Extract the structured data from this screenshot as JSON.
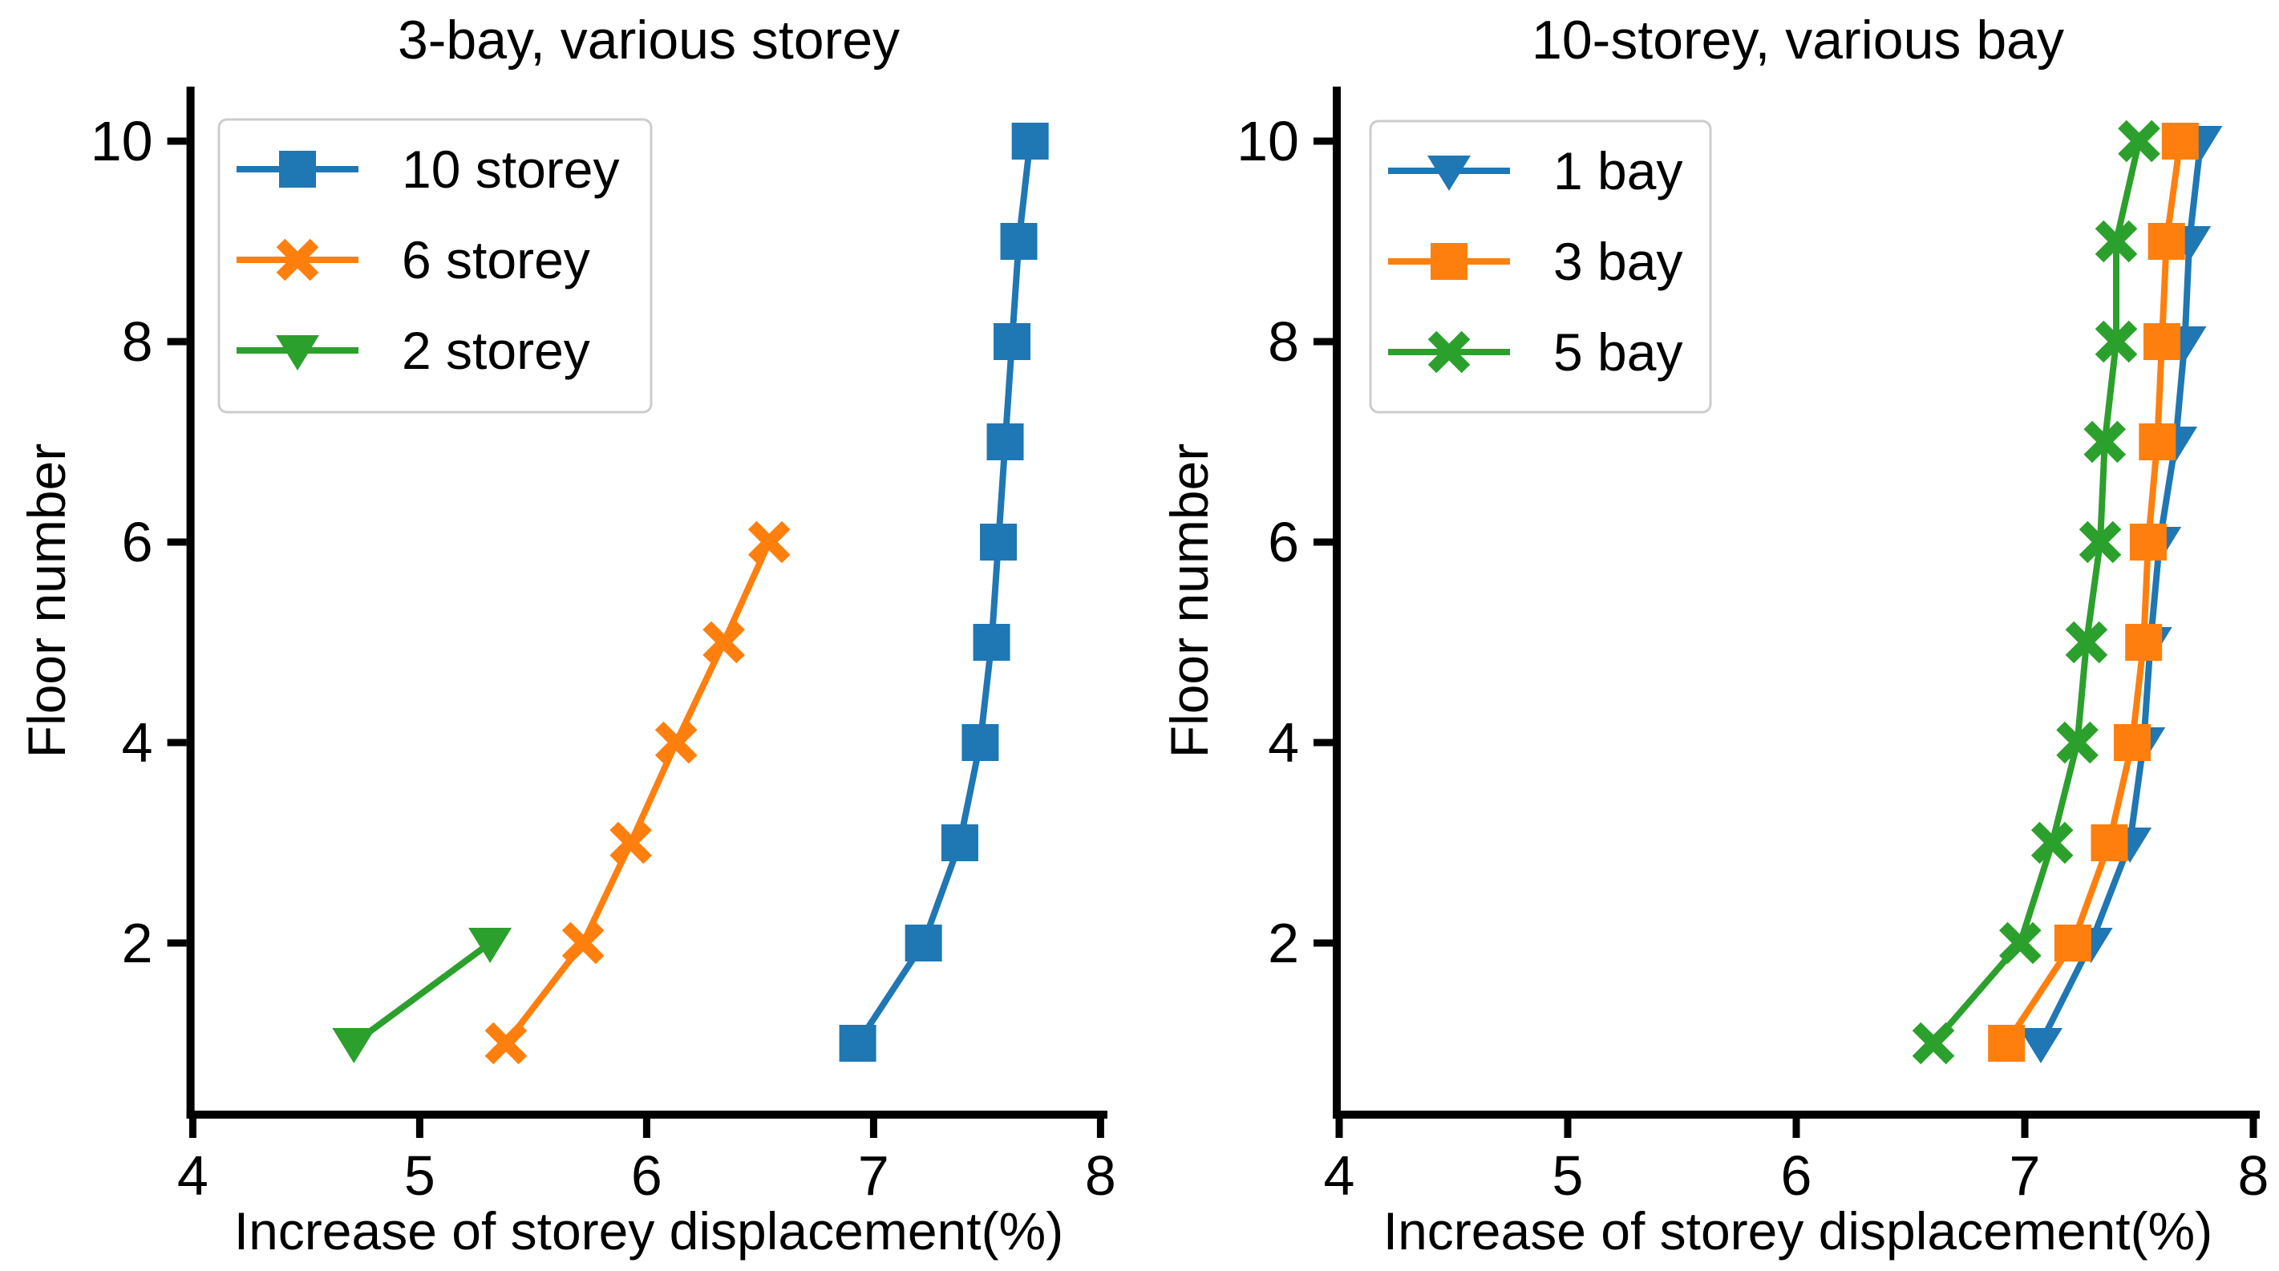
{
  "figure": {
    "background": "#ffffff",
    "axis_color": "#000000",
    "legend_border_color": "#cccccc"
  },
  "chart_data": [
    {
      "type": "line",
      "title": "3-bay, various storey",
      "xlabel": "Increase of storey displacement(%)",
      "ylabel": "Floor number",
      "xticks": [
        4,
        5,
        6,
        7,
        8
      ],
      "yticks": [
        2,
        4,
        6,
        8,
        10
      ],
      "xlim": [
        4,
        8.03
      ],
      "ylim": [
        0.29,
        10.54
      ],
      "grid": false,
      "legend_position": "upper left",
      "series": [
        {
          "name": "10 storey",
          "color": "#1f77b4",
          "marker": "square",
          "floors": [
            1,
            2,
            3,
            4,
            5,
            6,
            7,
            8,
            9,
            10
          ],
          "values": [
            6.93,
            7.22,
            7.38,
            7.47,
            7.52,
            7.55,
            7.58,
            7.61,
            7.64,
            7.69
          ]
        },
        {
          "name": "6 storey",
          "color": "#ff7f0e",
          "marker": "x",
          "floors": [
            1,
            2,
            3,
            4,
            5,
            6
          ],
          "values": [
            5.38,
            5.72,
            5.93,
            6.13,
            6.34,
            6.54
          ]
        },
        {
          "name": "2 storey",
          "color": "#2ca02c",
          "marker": "triangle-down",
          "floors": [
            1,
            2
          ],
          "values": [
            4.71,
            5.31
          ]
        }
      ]
    },
    {
      "type": "line",
      "title": "10-storey, various bay",
      "xlabel": "Increase of storey displacement(%)",
      "ylabel": "Floor number",
      "xticks": [
        4,
        5,
        6,
        7,
        8
      ],
      "yticks": [
        2,
        4,
        6,
        8,
        10
      ],
      "xlim": [
        4,
        8.03
      ],
      "ylim": [
        0.29,
        10.54
      ],
      "grid": false,
      "legend_position": "upper left",
      "series": [
        {
          "name": "1 bay",
          "color": "#1f77b4",
          "marker": "triangle-down",
          "floors": [
            1,
            2,
            3,
            4,
            5,
            6,
            7,
            8,
            9,
            10
          ],
          "values": [
            7.07,
            7.29,
            7.46,
            7.52,
            7.55,
            7.59,
            7.66,
            7.7,
            7.72,
            7.77
          ]
        },
        {
          "name": "3 bay",
          "color": "#ff7f0e",
          "marker": "square",
          "floors": [
            1,
            2,
            3,
            4,
            5,
            6,
            7,
            8,
            9,
            10
          ],
          "values": [
            6.92,
            7.21,
            7.37,
            7.47,
            7.52,
            7.54,
            7.58,
            7.6,
            7.62,
            7.68
          ]
        },
        {
          "name": "5 bay",
          "color": "#2ca02c",
          "marker": "x",
          "floors": [
            1,
            2,
            3,
            4,
            5,
            6,
            7,
            8,
            9,
            10
          ],
          "values": [
            6.6,
            6.98,
            7.12,
            7.23,
            7.27,
            7.33,
            7.35,
            7.4,
            7.4,
            7.5
          ]
        }
      ]
    }
  ]
}
